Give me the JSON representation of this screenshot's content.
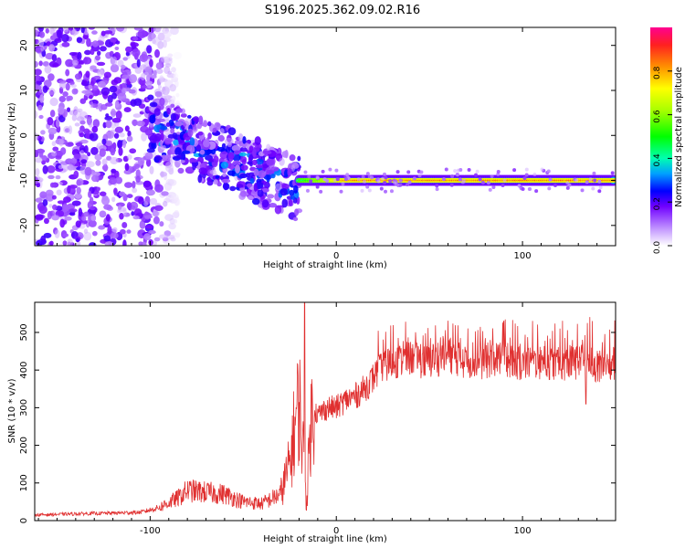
{
  "title": "S196.2025.362.09.02.R16",
  "chart_data": [
    {
      "type": "heatmap",
      "xlabel": "Height of straight line (km)",
      "ylabel": "Frequency (Hz)",
      "xlim": [
        -162,
        150
      ],
      "ylim": [
        -24.5,
        24
      ],
      "xticks": [
        -100,
        0,
        100
      ],
      "yticks": [
        -20,
        -10,
        0,
        10,
        20
      ],
      "colorbar": {
        "label": "Normalized spectral amplitude",
        "range": [
          0,
          1
        ],
        "ticks": [
          0.0,
          0.2,
          0.4,
          0.6,
          0.8
        ]
      },
      "features": [
        {
          "kind": "scattered-noise",
          "x_range": [
            -162,
            -100
          ],
          "f_range": [
            -24.5,
            24
          ],
          "amplitude": 0.1
        },
        {
          "kind": "descending-trace",
          "x_range": [
            -100,
            -20
          ],
          "f_start": 2,
          "f_end": -12,
          "amplitude": 0.25
        },
        {
          "kind": "steady-line",
          "x_range": [
            -20,
            150
          ],
          "f": -10,
          "amplitude": 0.85
        }
      ]
    },
    {
      "type": "line",
      "xlabel": "Height of straight line (km)",
      "ylabel": "SNR (10 * v/v)",
      "xlim": [
        -162,
        150
      ],
      "ylim": [
        0,
        580
      ],
      "xticks": [
        -100,
        0,
        100
      ],
      "yticks": [
        0,
        100,
        200,
        300,
        400,
        500
      ],
      "color": "#e03030",
      "series": [
        {
          "name": "SNR",
          "x": [
            -162,
            -140,
            -120,
            -105,
            -95,
            -85,
            -80,
            -70,
            -60,
            -50,
            -40,
            -30,
            -25,
            -22,
            -20,
            -18,
            -16,
            -14,
            -12,
            -10,
            -5,
            0,
            5,
            10,
            15,
            20,
            25,
            30,
            40,
            50,
            60,
            70,
            80,
            90,
            100,
            110,
            120,
            130,
            135,
            140,
            150
          ],
          "y": [
            15,
            18,
            20,
            22,
            35,
            60,
            80,
            75,
            70,
            50,
            45,
            70,
            150,
            260,
            320,
            200,
            40,
            250,
            300,
            280,
            300,
            300,
            320,
            330,
            350,
            380,
            410,
            420,
            430,
            420,
            440,
            420,
            420,
            430,
            415,
            420,
            415,
            420,
            430,
            400,
            420
          ]
        }
      ],
      "spikes": [
        {
          "x": -17,
          "y": 580
        },
        {
          "x": 90,
          "y": 530
        },
        {
          "x": 134,
          "y": 310
        }
      ]
    }
  ]
}
